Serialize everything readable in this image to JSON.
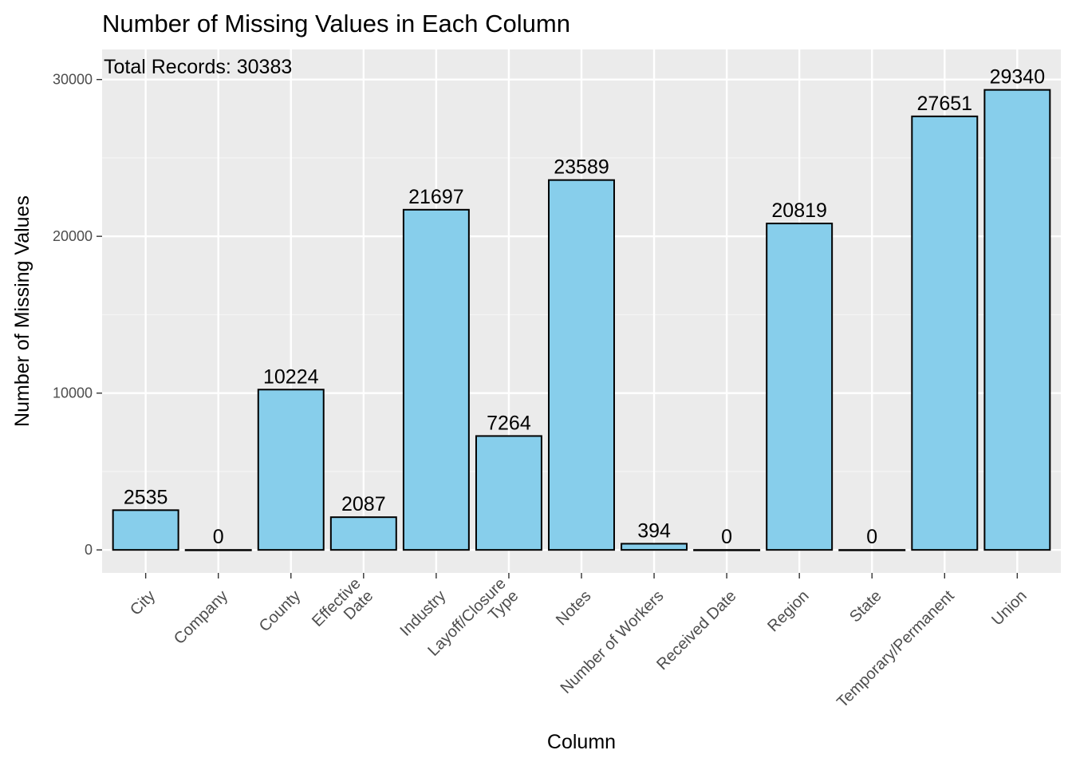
{
  "chart_data": {
    "type": "bar",
    "title": "Number of Missing Values in Each Column",
    "xlabel": "Column",
    "ylabel": "Number of Missing Values",
    "annotation": "Total Records: 30383",
    "categories": [
      [
        "City"
      ],
      [
        "Company"
      ],
      [
        "County"
      ],
      [
        "Effective",
        "Date"
      ],
      [
        "Industry"
      ],
      [
        "Layoff/Closure",
        "Type"
      ],
      [
        "Notes"
      ],
      [
        "Number of Workers"
      ],
      [
        "Received Date"
      ],
      [
        "Region"
      ],
      [
        "State"
      ],
      [
        "Temporary/Permanent"
      ],
      [
        "Union"
      ]
    ],
    "values": [
      2535,
      0,
      10224,
      2087,
      21697,
      7264,
      23589,
      394,
      0,
      20819,
      0,
      27651,
      29340
    ],
    "ylim": [
      -1467,
      31917
    ],
    "yticks": [
      0,
      10000,
      20000,
      30000
    ],
    "grid": true,
    "colors": {
      "panel": "#EBEBEB",
      "grid_major": "#FFFFFF",
      "grid_minor": "#F5F5F5",
      "bar_fill": "#87CEEB",
      "bar_stroke": "#000000"
    }
  }
}
